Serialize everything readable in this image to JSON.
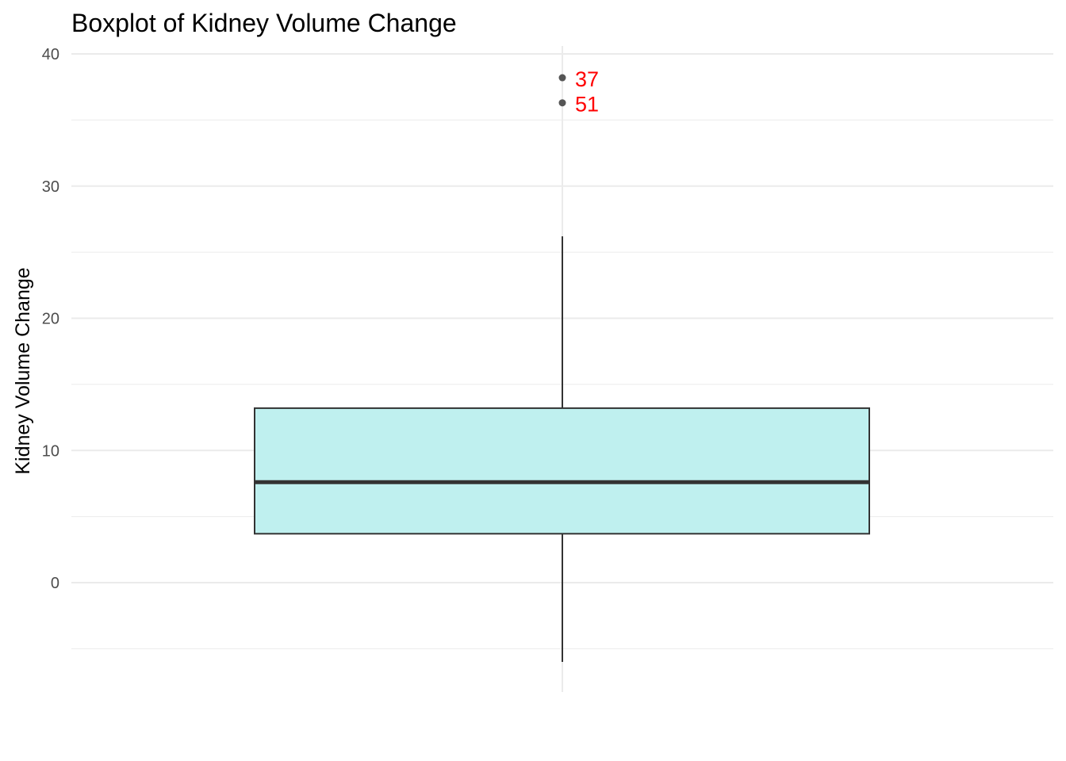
{
  "chart_data": {
    "type": "boxplot",
    "title": "Boxplot of Kidney Volume Change",
    "xlabel": "",
    "ylabel": "Kidney Volume Change",
    "ylim": [
      -8,
      40
    ],
    "yticks": [
      0,
      10,
      20,
      30,
      40
    ],
    "grid": true,
    "box": {
      "min": -6,
      "q1": 3.7,
      "median": 7.6,
      "q3": 13.2,
      "max": 26.2
    },
    "outliers": [
      {
        "value": 38.2,
        "label": "37"
      },
      {
        "value": 36.3,
        "label": "51"
      }
    ],
    "colors": {
      "fill": "#bff0ef",
      "outline": "#333333",
      "outlier_point": "#555555",
      "outlier_label": "#ff0000",
      "grid": "#ebebeb"
    }
  }
}
